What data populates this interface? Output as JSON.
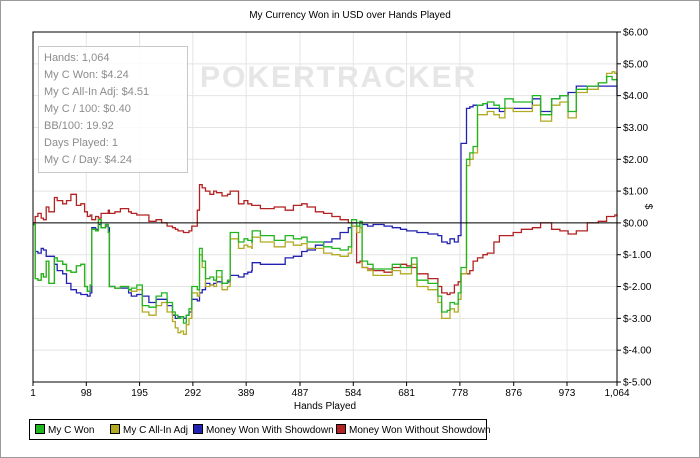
{
  "chart_data": {
    "type": "line",
    "title": "My Currency Won in USD over Hands Played",
    "xlabel": "Hands Played",
    "ylabel": "$",
    "xlim": [
      1,
      1064
    ],
    "ylim": [
      -5,
      6
    ],
    "x_ticks": [
      1,
      98,
      195,
      292,
      389,
      487,
      584,
      681,
      778,
      876,
      973,
      1064
    ],
    "x_tick_labels": [
      "1",
      "98",
      "195",
      "292",
      "389",
      "487",
      "584",
      "681",
      "778",
      "876",
      "973",
      "1,064"
    ],
    "y_ticks": [
      -5,
      -4,
      -3,
      -2,
      -1,
      0,
      1,
      2,
      3,
      4,
      5,
      6
    ],
    "y_tick_labels": [
      "$-5.00",
      "$-4.00",
      "$-3.00",
      "$-2.00",
      "$-1.00",
      "$0.00",
      "$1.00",
      "$2.00",
      "$3.00",
      "$4.00",
      "$5.00",
      "$6.00"
    ],
    "y_axis_side": "right",
    "grid": true,
    "legend_position": "bottom",
    "watermark": "POKERTRACKER",
    "series": [
      {
        "name": "My C Won",
        "color": "#22b522",
        "x": [
          1,
          5,
          10,
          16,
          20,
          25,
          30,
          40,
          45,
          55,
          62,
          70,
          80,
          88,
          95,
          100,
          105,
          108,
          115,
          120,
          125,
          133,
          138,
          140,
          150,
          160,
          175,
          180,
          190,
          200,
          212,
          225,
          235,
          245,
          255,
          260,
          265,
          270,
          275,
          280,
          285,
          290,
          300,
          304,
          309,
          315,
          323,
          330,
          335,
          345,
          355,
          360,
          375,
          385,
          392,
          399,
          400,
          415,
          440,
          460,
          475,
          490,
          500,
          515,
          530,
          545,
          560,
          575,
          581,
          590,
          596,
          600,
          610,
          620,
          640,
          655,
          670,
          681,
          690,
          700,
          720,
          738,
          745,
          755,
          760,
          768,
          775,
          780,
          790,
          796,
          802,
          810,
          820,
          828,
          840,
          850,
          860,
          875,
          890,
          910,
          925,
          945,
          960,
          975,
          990,
          1010,
          1030,
          1045,
          1055,
          1060,
          1064
        ],
        "values": [
          -0.05,
          -1.75,
          -1.8,
          -1.6,
          -1.7,
          -1.2,
          -1.9,
          -1.1,
          -1.2,
          -1.3,
          -1.5,
          -1.55,
          -1.35,
          -1.3,
          -2.0,
          -2.15,
          -1.95,
          -0.2,
          -0.25,
          0.1,
          -0.15,
          -0.05,
          -0.3,
          -2.0,
          -2.05,
          -2.0,
          -2.1,
          -2.05,
          -1.95,
          -2.6,
          -2.65,
          -2.3,
          -2.2,
          -2.5,
          -2.8,
          -2.9,
          -3.0,
          -2.95,
          -3.15,
          -2.9,
          -2.7,
          -2.0,
          -2.1,
          -0.8,
          -1.2,
          -1.75,
          -1.7,
          -1.8,
          -1.5,
          -1.9,
          -1.8,
          -0.3,
          -0.6,
          -0.5,
          -0.55,
          -0.6,
          -0.25,
          -0.4,
          -0.55,
          -0.4,
          -0.5,
          -0.45,
          -0.6,
          -0.6,
          -0.75,
          -0.8,
          -0.85,
          -0.75,
          0.1,
          -0.1,
          0.05,
          -1.2,
          -1.3,
          -1.45,
          -1.45,
          -1.3,
          -1.4,
          -1.4,
          -1.1,
          -1.8,
          -1.9,
          -2.3,
          -2.8,
          -2.75,
          -2.5,
          -2.55,
          -2.2,
          -1.4,
          2.0,
          2.2,
          2.4,
          3.7,
          3.75,
          3.8,
          3.7,
          3.6,
          3.9,
          3.8,
          3.8,
          4.0,
          3.4,
          3.9,
          4.0,
          3.5,
          4.2,
          4.3,
          4.4,
          4.6,
          4.5,
          4.5,
          4.3
        ]
      },
      {
        "name": "My C All-In Adj",
        "color": "#b2aa22",
        "x": [
          1,
          5,
          10,
          16,
          20,
          25,
          30,
          40,
          45,
          55,
          62,
          70,
          80,
          88,
          95,
          100,
          105,
          108,
          115,
          120,
          125,
          133,
          138,
          140,
          150,
          160,
          175,
          180,
          190,
          200,
          212,
          225,
          235,
          245,
          255,
          260,
          265,
          270,
          275,
          280,
          285,
          290,
          300,
          304,
          309,
          315,
          323,
          330,
          335,
          345,
          355,
          360,
          375,
          385,
          392,
          399,
          400,
          415,
          440,
          460,
          475,
          490,
          500,
          515,
          530,
          545,
          560,
          575,
          581,
          590,
          596,
          600,
          610,
          620,
          640,
          655,
          670,
          681,
          690,
          700,
          720,
          738,
          745,
          755,
          760,
          768,
          775,
          780,
          790,
          796,
          802,
          810,
          820,
          828,
          840,
          850,
          860,
          875,
          890,
          910,
          925,
          945,
          960,
          975,
          990,
          1010,
          1030,
          1045,
          1055,
          1060,
          1064
        ],
        "values": [
          -0.05,
          -1.75,
          -1.8,
          -1.6,
          -1.7,
          -1.2,
          -1.9,
          -1.1,
          -1.2,
          -1.3,
          -1.5,
          -1.55,
          -1.35,
          -1.3,
          -2.0,
          -2.15,
          -1.95,
          -0.2,
          -0.25,
          0.1,
          -0.15,
          -0.05,
          -0.3,
          -2.0,
          -2.05,
          -2.0,
          -2.1,
          -2.15,
          -2.1,
          -2.8,
          -2.9,
          -2.6,
          -2.5,
          -2.8,
          -3.1,
          -3.3,
          -3.45,
          -3.4,
          -3.5,
          -3.2,
          -3.0,
          -2.2,
          -2.3,
          -1.0,
          -1.4,
          -2.0,
          -1.95,
          -2.0,
          -1.7,
          -2.1,
          -2.0,
          -0.5,
          -0.8,
          -0.7,
          -0.75,
          -0.8,
          -0.45,
          -0.6,
          -0.75,
          -0.6,
          -0.7,
          -0.65,
          -0.8,
          -0.8,
          -0.95,
          -1.0,
          -1.05,
          -0.95,
          -0.1,
          -0.3,
          -0.15,
          -1.4,
          -1.5,
          -1.65,
          -1.65,
          -1.5,
          -1.6,
          -1.6,
          -1.3,
          -2.0,
          -2.1,
          -2.5,
          -3.0,
          -3.0,
          -2.7,
          -2.8,
          -2.4,
          -1.6,
          1.8,
          2.0,
          2.2,
          3.4,
          3.4,
          3.5,
          3.4,
          3.3,
          3.6,
          3.5,
          3.5,
          3.7,
          3.2,
          3.7,
          3.8,
          3.3,
          4.1,
          4.2,
          4.4,
          4.7,
          4.75,
          4.7,
          4.5
        ]
      },
      {
        "name": "Money Won With Showdown",
        "color": "#2222b2",
        "x": [
          1,
          5,
          10,
          16,
          20,
          25,
          30,
          40,
          45,
          55,
          62,
          70,
          80,
          88,
          95,
          100,
          105,
          108,
          115,
          120,
          125,
          133,
          138,
          140,
          150,
          160,
          175,
          180,
          190,
          200,
          212,
          225,
          235,
          245,
          255,
          260,
          265,
          270,
          275,
          280,
          285,
          290,
          300,
          304,
          309,
          315,
          323,
          330,
          335,
          345,
          355,
          360,
          375,
          385,
          392,
          399,
          400,
          415,
          440,
          460,
          475,
          490,
          500,
          515,
          530,
          545,
          560,
          575,
          581,
          590,
          596,
          600,
          610,
          620,
          640,
          655,
          670,
          681,
          690,
          700,
          720,
          738,
          745,
          755,
          760,
          768,
          775,
          780,
          790,
          796,
          802,
          810,
          820,
          828,
          840,
          850,
          860,
          875,
          890,
          910,
          925,
          945,
          960,
          975,
          990,
          1010,
          1030,
          1045,
          1055,
          1060,
          1064
        ],
        "values": [
          -0.05,
          -0.9,
          -0.95,
          -0.8,
          -0.85,
          -1.05,
          -1.05,
          -1.3,
          -1.5,
          -1.6,
          -1.9,
          -2.1,
          -2.2,
          -2.25,
          -2.25,
          -2.3,
          -2.2,
          -0.15,
          -0.2,
          -0.05,
          -0.15,
          -0.1,
          -0.15,
          -2.0,
          -2.05,
          -2.05,
          -2.2,
          -2.3,
          -2.25,
          -2.3,
          -2.5,
          -2.4,
          -2.4,
          -2.6,
          -2.9,
          -3.0,
          -2.95,
          -2.95,
          -3.0,
          -2.9,
          -2.8,
          -2.4,
          -2.45,
          -2.2,
          -2.1,
          -1.9,
          -1.95,
          -1.9,
          -1.85,
          -1.9,
          -1.85,
          -1.65,
          -1.7,
          -1.6,
          -1.55,
          -1.5,
          -1.25,
          -1.3,
          -1.3,
          -1.1,
          -1.05,
          -0.9,
          -0.85,
          -0.7,
          -0.6,
          -0.5,
          -0.3,
          -0.15,
          0.0,
          -0.1,
          0.0,
          -0.05,
          -0.1,
          -0.05,
          -0.1,
          -0.15,
          -0.2,
          -0.25,
          -0.25,
          -0.3,
          -0.35,
          -0.4,
          -0.6,
          -0.65,
          -0.5,
          -0.6,
          -0.4,
          2.5,
          3.6,
          3.65,
          3.7,
          3.7,
          3.75,
          3.6,
          3.6,
          3.5,
          3.6,
          3.6,
          3.6,
          3.9,
          3.5,
          3.9,
          4.0,
          4.1,
          4.3,
          4.3,
          4.3,
          4.3,
          4.3,
          4.3,
          4.0
        ]
      },
      {
        "name": "Money Won Without Showdown",
        "color": "#b22222",
        "x": [
          1,
          5,
          10,
          16,
          20,
          25,
          30,
          40,
          45,
          55,
          62,
          70,
          80,
          88,
          95,
          100,
          105,
          108,
          115,
          120,
          125,
          133,
          138,
          140,
          150,
          160,
          175,
          180,
          190,
          200,
          212,
          225,
          235,
          245,
          255,
          260,
          265,
          270,
          275,
          280,
          285,
          290,
          300,
          304,
          309,
          315,
          323,
          330,
          335,
          345,
          355,
          360,
          375,
          385,
          392,
          399,
          400,
          415,
          440,
          460,
          475,
          490,
          500,
          515,
          530,
          545,
          560,
          575,
          581,
          590,
          596,
          600,
          610,
          620,
          640,
          655,
          670,
          681,
          690,
          700,
          720,
          738,
          745,
          755,
          760,
          768,
          775,
          780,
          790,
          796,
          802,
          810,
          820,
          828,
          840,
          850,
          860,
          875,
          890,
          910,
          925,
          945,
          960,
          975,
          990,
          1010,
          1030,
          1045,
          1055,
          1060,
          1064
        ],
        "values": [
          0.0,
          0.2,
          0.3,
          0.15,
          0.1,
          0.5,
          0.35,
          0.8,
          0.7,
          0.6,
          0.7,
          0.9,
          0.55,
          0.6,
          0.35,
          0.2,
          0.25,
          0.1,
          0.2,
          0.15,
          0.3,
          0.3,
          0.4,
          0.3,
          0.35,
          0.45,
          0.35,
          0.3,
          0.25,
          0.25,
          0.05,
          0.1,
          0.0,
          -0.1,
          -0.15,
          -0.2,
          -0.25,
          -0.25,
          -0.3,
          -0.3,
          -0.25,
          -0.1,
          0.4,
          1.2,
          1.1,
          1.0,
          0.9,
          1.0,
          0.95,
          0.85,
          0.9,
          1.0,
          0.6,
          0.7,
          0.6,
          0.55,
          0.55,
          0.45,
          0.5,
          0.4,
          0.55,
          0.6,
          0.5,
          0.35,
          0.3,
          0.2,
          0.1,
          0.0,
          -0.1,
          -1.25,
          -1.2,
          -1.4,
          -1.45,
          -1.5,
          -1.55,
          -1.4,
          -1.3,
          -1.35,
          -1.4,
          -1.6,
          -1.75,
          -2.0,
          -2.2,
          -2.25,
          -2.2,
          -1.95,
          -1.85,
          -1.6,
          -1.6,
          -1.5,
          -1.2,
          -1.1,
          -1.0,
          -0.95,
          -0.6,
          -0.4,
          -0.4,
          -0.3,
          -0.2,
          -0.15,
          0.0,
          -0.2,
          -0.25,
          -0.35,
          -0.25,
          0.0,
          0.05,
          0.2,
          0.2,
          0.25,
          0.2
        ]
      }
    ]
  },
  "stats": [
    "Hands: 1,064",
    "My C Won: $4.24",
    "My C All-In Adj: $4.51",
    "My C / 100: $0.40",
    "BB/100: 19.92",
    "Days Played: 1",
    "My C / Day: $4.24"
  ],
  "legend": [
    {
      "label": "My C Won",
      "color": "#22b522"
    },
    {
      "label": "My C All-In Adj",
      "color": "#b2aa22"
    },
    {
      "label": "Money Won With Showdown",
      "color": "#2222b2"
    },
    {
      "label": "Money Won Without Showdown",
      "color": "#b22222"
    }
  ]
}
